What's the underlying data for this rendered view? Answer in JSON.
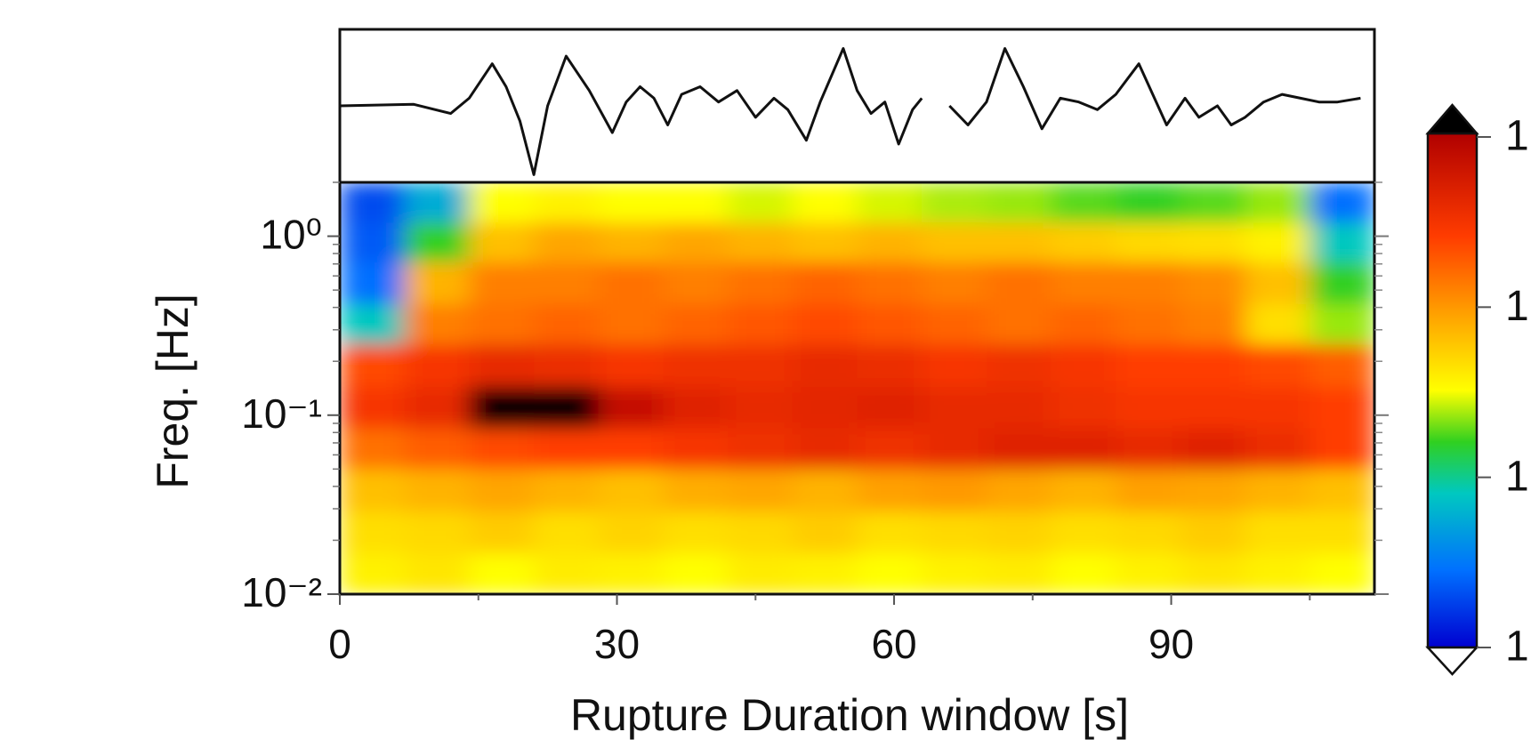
{
  "chart_data": [
    {
      "type": "line",
      "color": "#111111",
      "x": [
        0,
        8,
        12,
        14,
        16.5,
        18,
        19.5,
        21,
        22.5,
        24.5,
        27,
        29.5,
        31,
        32.5,
        34,
        35.5,
        37,
        39,
        41,
        43,
        45,
        47,
        48.5,
        50.5,
        52,
        54.5,
        56,
        57.5,
        59,
        60.5,
        62,
        63,
        64.5,
        66,
        68,
        70,
        72,
        74,
        76,
        78,
        80,
        82,
        84,
        86.5,
        88,
        89.5,
        91.5,
        93,
        95,
        96.5,
        98,
        100,
        102,
        104,
        106,
        108,
        110.5
      ],
      "values": [
        0,
        0.02,
        -0.1,
        0.1,
        0.55,
        0.25,
        -0.2,
        -0.9,
        0,
        0.65,
        0.2,
        -0.35,
        0.05,
        0.25,
        0.1,
        -0.25,
        0.15,
        0.25,
        0.05,
        0.2,
        -0.15,
        0.1,
        -0.05,
        -0.45,
        0.05,
        0.75,
        0.2,
        -0.1,
        0.05,
        -0.5,
        -0.05,
        0.1,
        null,
        0,
        -0.25,
        0.05,
        0.75,
        0.25,
        -0.3,
        0.1,
        0.05,
        -0.05,
        0.15,
        0.55,
        0.15,
        -0.25,
        0.1,
        -0.15,
        0,
        -0.25,
        -0.15,
        0.05,
        0.15,
        0.1,
        0.05,
        0.05,
        0.1
      ],
      "xlim": [
        0,
        112
      ],
      "ylim": [
        -1,
        1
      ]
    },
    {
      "type": "heatmap",
      "xlabel": "Rupture Duration window  [s]",
      "ylabel": "Freq. [Hz]",
      "xlim": [
        0,
        112
      ],
      "ylim": [
        0.01,
        2
      ],
      "yscale": "log",
      "xticks": [
        0,
        30,
        60,
        90
      ],
      "xminorticks": [
        15,
        45,
        75,
        105
      ],
      "yticks": [
        {
          "value": 1,
          "label": "10⁰"
        },
        {
          "value": 0.1,
          "label": "10⁻¹"
        },
        {
          "value": 0.01,
          "label": "10⁻²"
        }
      ],
      "yminorticks": [
        0.02,
        0.03,
        0.04,
        0.05,
        0.06,
        0.07,
        0.08,
        0.09,
        0.2,
        0.3,
        0.4,
        0.5,
        0.6,
        0.7,
        0.8,
        0.9,
        2
      ],
      "x_bins": [
        0,
        7,
        14,
        21,
        28,
        35,
        42,
        49,
        56,
        63,
        70,
        77,
        84,
        91,
        98,
        105,
        112
      ],
      "y_bins": [
        0.01,
        0.017,
        0.029,
        0.05,
        0.085,
        0.145,
        0.25,
        0.42,
        0.72,
        1.2,
        2
      ],
      "z": [
        [
          0.52,
          0.54,
          0.5,
          0.53,
          0.52,
          0.5,
          0.53,
          0.52,
          0.5,
          0.52,
          0.53,
          0.5,
          0.52,
          0.54,
          0.52,
          0.5
        ],
        [
          0.55,
          0.56,
          0.58,
          0.55,
          0.57,
          0.55,
          0.56,
          0.58,
          0.55,
          0.56,
          0.57,
          0.55,
          0.56,
          0.58,
          0.55,
          0.55
        ],
        [
          0.6,
          0.62,
          0.64,
          0.62,
          0.6,
          0.63,
          0.64,
          0.62,
          0.65,
          0.66,
          0.64,
          0.62,
          0.65,
          0.64,
          0.62,
          0.6
        ],
        [
          0.72,
          0.75,
          0.78,
          0.8,
          0.8,
          0.82,
          0.84,
          0.86,
          0.84,
          0.86,
          0.88,
          0.88,
          0.86,
          0.88,
          0.85,
          0.8
        ],
        [
          0.82,
          0.86,
          1.02,
          1.05,
          0.95,
          0.88,
          0.86,
          0.87,
          0.88,
          0.86,
          0.86,
          0.84,
          0.82,
          0.82,
          0.82,
          0.8
        ],
        [
          0.78,
          0.82,
          0.86,
          0.85,
          0.82,
          0.84,
          0.84,
          0.86,
          0.85,
          0.82,
          0.84,
          0.82,
          0.8,
          0.8,
          0.78,
          0.75
        ],
        [
          0.3,
          0.7,
          0.72,
          0.74,
          0.72,
          0.74,
          0.76,
          0.78,
          0.76,
          0.74,
          0.72,
          0.74,
          0.72,
          0.7,
          0.55,
          0.45
        ],
        [
          0.15,
          0.62,
          0.7,
          0.7,
          0.72,
          0.7,
          0.72,
          0.74,
          0.72,
          0.7,
          0.72,
          0.7,
          0.7,
          0.68,
          0.6,
          0.4
        ],
        [
          0.12,
          0.4,
          0.6,
          0.64,
          0.62,
          0.64,
          0.62,
          0.6,
          0.62,
          0.6,
          0.6,
          0.58,
          0.56,
          0.55,
          0.52,
          0.3
        ],
        [
          0.1,
          0.25,
          0.5,
          0.52,
          0.5,
          0.5,
          0.48,
          0.5,
          0.48,
          0.46,
          0.45,
          0.42,
          0.4,
          0.42,
          0.45,
          0.15
        ]
      ],
      "colormap": [
        {
          "value": 0,
          "color": "#0000d0"
        },
        {
          "value": 0.15,
          "color": "#0070ff"
        },
        {
          "value": 0.3,
          "color": "#00c8c0"
        },
        {
          "value": 0.4,
          "color": "#30d020"
        },
        {
          "value": 0.5,
          "color": "#ffff00"
        },
        {
          "value": 0.65,
          "color": "#ffa000"
        },
        {
          "value": 0.8,
          "color": "#ff3c00"
        },
        {
          "value": 1,
          "color": "#b00000"
        }
      ],
      "over_color": "#000000",
      "under_color": "#ffffff",
      "colorbar": {
        "labels": [
          "1",
          "1",
          "1",
          "1"
        ]
      }
    }
  ]
}
